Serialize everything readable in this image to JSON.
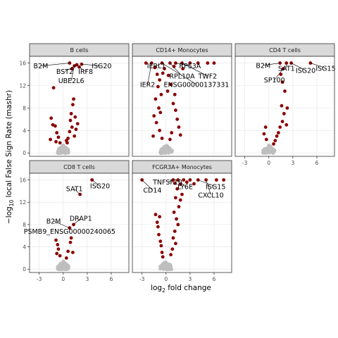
{
  "chart_data": {
    "type": "scatter",
    "xlabel": "log2 fold change",
    "ylabel": "−log10 local False Sign Rate (mashr)",
    "xlabel_parts": {
      "pre": "log",
      "sub": "2",
      "post": " fold change"
    },
    "ylabel_parts": {
      "pre": "−log",
      "sub": "10",
      "post": " local False Sign Rate (mashr)"
    },
    "x_ticks": [
      -3,
      0,
      3,
      6
    ],
    "y_ticks": [
      0,
      4,
      8,
      12,
      16
    ],
    "xlim": [
      -4.2,
      8.2
    ],
    "ylim": [
      -0.6,
      17.2
    ],
    "grid": true,
    "colors": {
      "significant": "#8b0000",
      "not_significant": "#bebebe",
      "panel_border": "#333333",
      "strip_fill": "#d9d9d9",
      "grid": "#ebebeb"
    },
    "panels": [
      {
        "title": "B cells",
        "points": [
          [
            0.8,
            16.0
          ],
          [
            1.4,
            15.5
          ],
          [
            1.7,
            15.7
          ],
          [
            2.0,
            15.3
          ],
          [
            2.3,
            15.8
          ],
          [
            1.1,
            15.0
          ],
          [
            -1.2,
            11.6
          ],
          [
            -1.5,
            6.2
          ],
          [
            -1.3,
            5.0
          ],
          [
            -1.0,
            4.8
          ],
          [
            -0.8,
            3.6
          ],
          [
            -0.6,
            2.8
          ],
          [
            1.3,
            9.6
          ],
          [
            1.2,
            8.6
          ],
          [
            1.0,
            7.0
          ],
          [
            0.9,
            5.8
          ],
          [
            1.5,
            6.4
          ],
          [
            1.1,
            4.6
          ],
          [
            0.8,
            3.8
          ],
          [
            0.6,
            2.6
          ],
          [
            1.4,
            3.0
          ],
          [
            0.5,
            1.8
          ],
          [
            1.8,
            5.2
          ],
          [
            1.6,
            4.2
          ],
          [
            0.4,
            2.2
          ],
          [
            -0.4,
            1.8
          ],
          [
            -1.6,
            2.4
          ],
          [
            -0.9,
            2.0
          ]
        ],
        "labels": [
          {
            "text": "B2M",
            "point": [
              0.8,
              16.0
            ],
            "at": [
              -2.8,
              15.5
            ]
          },
          {
            "text": "BST2",
            "point": [
              1.7,
              15.7
            ],
            "at": [
              0.2,
              14.5
            ]
          },
          {
            "text": "IRF8",
            "point": [
              2.0,
              15.3
            ],
            "at": [
              2.8,
              14.5
            ]
          },
          {
            "text": "ISG20",
            "point": [
              2.3,
              15.8
            ],
            "at": [
              4.8,
              15.5
            ]
          },
          {
            "text": "UBE2L6",
            "point": [
              1.4,
              15.5
            ],
            "at": [
              1.0,
              12.9
            ]
          }
        ]
      },
      {
        "title": "CD14+ Monocytes",
        "points": [
          [
            -2.5,
            16.0
          ],
          [
            -1.8,
            16.0
          ],
          [
            -0.5,
            16.0
          ],
          [
            0.5,
            16.0
          ],
          [
            1.2,
            16.0
          ],
          [
            2.0,
            16.0
          ],
          [
            3.0,
            16.0
          ],
          [
            4.0,
            16.0
          ],
          [
            5.2,
            16.0
          ],
          [
            6.0,
            16.0
          ],
          [
            -1.4,
            15.2
          ],
          [
            -0.8,
            13.0
          ],
          [
            -0.4,
            14.2
          ],
          [
            -0.2,
            15.0
          ],
          [
            0.3,
            13.8
          ],
          [
            1.0,
            15.4
          ],
          [
            0.6,
            12.2
          ],
          [
            -1.0,
            11.8
          ],
          [
            -0.6,
            10.4
          ],
          [
            0.2,
            11.0
          ],
          [
            1.1,
            10.4
          ],
          [
            -1.3,
            9.6
          ],
          [
            -0.9,
            8.0
          ],
          [
            -0.7,
            7.2
          ],
          [
            0.9,
            8.8
          ],
          [
            1.2,
            7.6
          ],
          [
            -1.5,
            6.6
          ],
          [
            1.4,
            6.0
          ],
          [
            -1.2,
            5.4
          ],
          [
            1.6,
            4.6
          ],
          [
            -0.8,
            4.0
          ],
          [
            0.7,
            3.6
          ],
          [
            -0.5,
            2.6
          ],
          [
            0.5,
            2.4
          ],
          [
            1.8,
            3.2
          ],
          [
            -1.6,
            3.0
          ],
          [
            -1.1,
            14.0
          ],
          [
            2.1,
            15.0
          ]
        ],
        "labels": [
          {
            "text": "IERL1",
            "point": [
              -0.5,
              16.0
            ],
            "at": [
              -1.2,
              15.5
            ]
          },
          {
            "text": "RPS3A",
            "point": [
              1.2,
              16.0
            ],
            "at": [
              3.0,
              15.5
            ]
          },
          {
            "text": "RPL10A",
            "point": [
              0.5,
              16.0
            ],
            "at": [
              2.0,
              13.7
            ]
          },
          {
            "text": "TWF2",
            "point": [
              2.0,
              16.0
            ],
            "at": [
              5.2,
              13.7
            ]
          },
          {
            "text": "IER2",
            "point": [
              -1.8,
              16.0
            ],
            "at": [
              -2.3,
              12.2
            ]
          },
          {
            "text": "ENSG00000137331",
            "point": [
              -0.5,
              16.0
            ],
            "at": [
              3.8,
              12.2
            ]
          }
        ]
      },
      {
        "title": "CD4 T cells",
        "points": [
          [
            1.4,
            16.0
          ],
          [
            2.2,
            16.0
          ],
          [
            2.8,
            16.0
          ],
          [
            5.2,
            16.0
          ],
          [
            1.8,
            15.0
          ],
          [
            1.5,
            14.0
          ],
          [
            1.7,
            12.6
          ],
          [
            2.0,
            11.0
          ],
          [
            1.6,
            8.4
          ],
          [
            1.9,
            7.0
          ],
          [
            1.7,
            5.6
          ],
          [
            1.4,
            4.6
          ],
          [
            1.2,
            3.6
          ],
          [
            1.0,
            3.0
          ],
          [
            0.8,
            2.2
          ],
          [
            -0.4,
            4.6
          ],
          [
            -0.6,
            3.4
          ],
          [
            -0.3,
            2.4
          ],
          [
            2.2,
            5.0
          ],
          [
            2.3,
            8.0
          ],
          [
            0.6,
            1.6
          ]
        ],
        "labels": [
          {
            "text": "B2M",
            "point": [
              1.4,
              16.0
            ],
            "at": [
              -0.7,
              15.6
            ]
          },
          {
            "text": "SAT1",
            "point": [
              2.2,
              16.0
            ],
            "at": [
              2.2,
              15.1
            ]
          },
          {
            "text": "ISG20",
            "point": [
              2.8,
              16.0
            ],
            "at": [
              4.6,
              14.7
            ]
          },
          {
            "text": "ISG15",
            "point": [
              5.2,
              16.0
            ],
            "at": [
              7.1,
              15.1
            ]
          },
          {
            "text": "SP100",
            "point": [
              1.8,
              15.0
            ],
            "at": [
              0.7,
              13.0
            ]
          }
        ]
      },
      {
        "title": "CD8 T cells",
        "points": [
          [
            3.6,
            16.0
          ],
          [
            2.1,
            13.4
          ],
          [
            1.3,
            8.0
          ],
          [
            0.8,
            7.4
          ],
          [
            -0.9,
            5.2
          ],
          [
            -0.7,
            4.4
          ],
          [
            1.0,
            5.6
          ],
          [
            0.9,
            4.8
          ],
          [
            -0.6,
            3.6
          ],
          [
            0.6,
            3.2
          ],
          [
            -0.4,
            2.4
          ],
          [
            0.4,
            2.0
          ],
          [
            -0.8,
            2.8
          ],
          [
            1.2,
            3.0
          ]
        ],
        "labels": [
          {
            "text": "ISG20",
            "point": [
              3.6,
              16.0
            ],
            "at": [
              4.6,
              14.9
            ]
          },
          {
            "text": "SAT1",
            "point": [
              2.1,
              13.4
            ],
            "at": [
              1.4,
              14.4
            ]
          },
          {
            "text": "B2M",
            "point": [
              0.8,
              7.4
            ],
            "at": [
              -1.2,
              8.6
            ]
          },
          {
            "text": "DRAP1",
            "point": [
              1.3,
              8.0
            ],
            "at": [
              2.2,
              9.1
            ]
          },
          {
            "text": "PSMB9_ENSG00000240065",
            "point": [
              0.8,
              7.4
            ],
            "at": [
              0.8,
              6.8
            ]
          }
        ]
      },
      {
        "title": "FCGR3A+ Monocytes",
        "points": [
          [
            -3.0,
            16.0
          ],
          [
            0.9,
            16.0
          ],
          [
            1.5,
            16.0
          ],
          [
            2.2,
            16.0
          ],
          [
            3.0,
            16.0
          ],
          [
            4.0,
            16.0
          ],
          [
            5.0,
            16.0
          ],
          [
            6.3,
            16.0
          ],
          [
            7.2,
            16.0
          ],
          [
            1.1,
            15.4
          ],
          [
            1.8,
            15.2
          ],
          [
            2.6,
            15.6
          ],
          [
            3.5,
            15.3
          ],
          [
            1.4,
            14.4
          ],
          [
            2.0,
            13.4
          ],
          [
            1.2,
            12.8
          ],
          [
            1.6,
            11.2
          ],
          [
            1.0,
            10.2
          ],
          [
            -0.8,
            9.4
          ],
          [
            -1.1,
            8.4
          ],
          [
            1.3,
            9.0
          ],
          [
            1.5,
            8.0
          ],
          [
            1.1,
            6.8
          ],
          [
            -1.0,
            7.6
          ],
          [
            -0.9,
            6.2
          ],
          [
            0.9,
            5.6
          ],
          [
            -0.7,
            5.0
          ],
          [
            1.2,
            4.6
          ],
          [
            -0.6,
            4.2
          ],
          [
            0.8,
            3.6
          ],
          [
            -0.5,
            3.0
          ],
          [
            0.6,
            2.6
          ],
          [
            -0.4,
            2.2
          ],
          [
            1.8,
            12.4
          ],
          [
            -1.3,
            9.8
          ]
        ],
        "labels": [
          {
            "text": "TNFSF10",
            "point": [
              0.9,
              16.0
            ],
            "at": [
              0.2,
              15.6
            ]
          },
          {
            "text": "LY6E",
            "point": [
              1.5,
              16.0
            ],
            "at": [
              2.4,
              14.8
            ]
          },
          {
            "text": "ISG15",
            "point": [
              4.0,
              16.0
            ],
            "at": [
              6.2,
              14.8
            ]
          },
          {
            "text": "CD14",
            "point": [
              -3.0,
              16.0
            ],
            "at": [
              -1.7,
              14.2
            ]
          },
          {
            "text": "CXCL10",
            "point": [
              5.0,
              16.0
            ],
            "at": [
              5.6,
              13.3
            ]
          }
        ]
      }
    ]
  }
}
